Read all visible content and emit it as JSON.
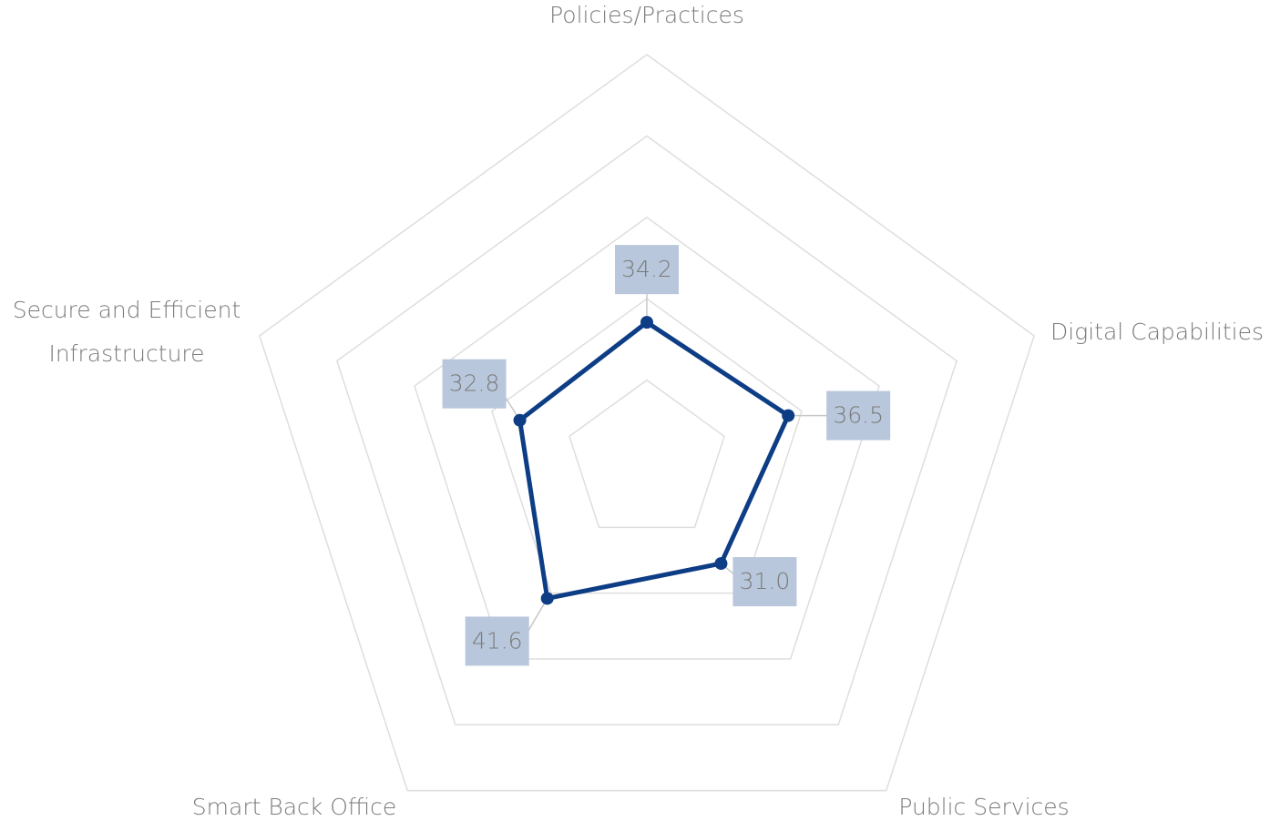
{
  "chart_data": {
    "type": "radar",
    "categories": [
      "Policies/Practices",
      "Digital Capabilities",
      "Public Services",
      "Smart Back Office",
      "Secure and Efficient\nInfrastructure"
    ],
    "values": [
      34.2,
      36.5,
      31.0,
      41.6,
      32.8
    ],
    "value_labels": [
      "34.2",
      "36.5",
      "31.0",
      "41.6",
      "32.8"
    ],
    "color": "#0d3d85",
    "ylim": [
      0,
      100
    ],
    "yticks": [
      0,
      20,
      40,
      60,
      80,
      100
    ],
    "grid": true
  }
}
